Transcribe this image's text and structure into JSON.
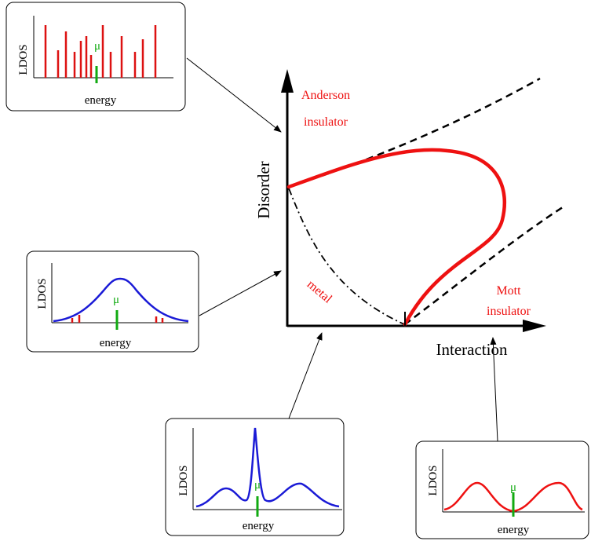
{
  "main_diagram": {
    "x_axis_label": "Interaction",
    "y_axis_label": "Disorder",
    "region_labels": {
      "anderson_line1": "Anderson",
      "anderson_line2": "insulator",
      "metal": "metal",
      "mott_line1": "Mott",
      "mott_line2": "insulator"
    }
  },
  "insets": {
    "anderson": {
      "ylabel": "LDOS",
      "xlabel": "energy",
      "mu": "μ"
    },
    "metal_disordered": {
      "ylabel": "LDOS",
      "xlabel": "energy",
      "mu": "μ"
    },
    "metal_correlated": {
      "ylabel": "LDOS",
      "xlabel": "energy",
      "mu": "μ"
    },
    "mott": {
      "ylabel": "LDOS",
      "xlabel": "energy",
      "mu": "μ"
    }
  },
  "colors": {
    "phase_boundary": "#ee1111",
    "dos_curve": "#1a1ad6",
    "chemical_potential": "#11aa11",
    "axis": "#000000"
  }
}
